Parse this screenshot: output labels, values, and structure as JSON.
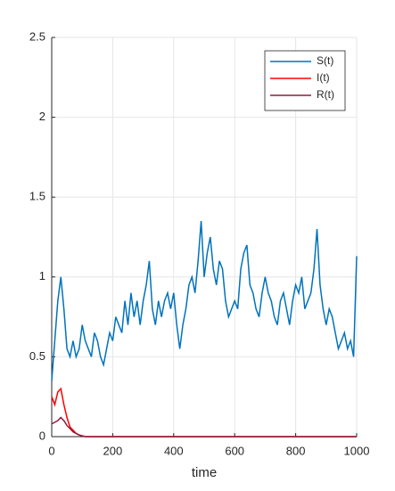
{
  "chart_data": {
    "type": "line",
    "xlabel": "time",
    "x": [
      0,
      10,
      20,
      30,
      40,
      50,
      60,
      70,
      80,
      90,
      100,
      110,
      120,
      130,
      140,
      150,
      160,
      170,
      180,
      190,
      200,
      210,
      220,
      230,
      240,
      250,
      260,
      270,
      280,
      290,
      300,
      310,
      320,
      330,
      340,
      350,
      360,
      370,
      380,
      390,
      400,
      410,
      420,
      430,
      440,
      450,
      460,
      470,
      480,
      490,
      500,
      510,
      520,
      530,
      540,
      550,
      560,
      570,
      580,
      590,
      600,
      610,
      620,
      630,
      640,
      650,
      660,
      670,
      680,
      690,
      700,
      710,
      720,
      730,
      740,
      750,
      760,
      770,
      780,
      790,
      800,
      810,
      820,
      830,
      840,
      850,
      860,
      870,
      880,
      890,
      900,
      910,
      920,
      930,
      940,
      950,
      960,
      970,
      980,
      990,
      1000
    ],
    "series": [
      {
        "name": "S(t)",
        "color": "#0072bd",
        "values": [
          0.35,
          0.6,
          0.85,
          1.0,
          0.8,
          0.55,
          0.5,
          0.6,
          0.5,
          0.55,
          0.7,
          0.6,
          0.55,
          0.5,
          0.65,
          0.6,
          0.5,
          0.45,
          0.55,
          0.65,
          0.6,
          0.75,
          0.7,
          0.65,
          0.85,
          0.7,
          0.9,
          0.75,
          0.85,
          0.7,
          0.85,
          0.95,
          1.1,
          0.8,
          0.7,
          0.85,
          0.75,
          0.85,
          0.9,
          0.8,
          0.9,
          0.7,
          0.55,
          0.7,
          0.8,
          0.95,
          1.0,
          0.9,
          1.1,
          1.35,
          1.0,
          1.15,
          1.25,
          1.05,
          0.95,
          1.1,
          1.05,
          0.85,
          0.75,
          0.8,
          0.85,
          0.8,
          1.05,
          1.15,
          1.2,
          0.95,
          0.9,
          0.8,
          0.75,
          0.9,
          1.0,
          0.9,
          0.85,
          0.75,
          0.7,
          0.85,
          0.9,
          0.8,
          0.7,
          0.85,
          0.95,
          0.9,
          1.0,
          0.8,
          0.85,
          0.9,
          1.05,
          1.3,
          0.95,
          0.8,
          0.7,
          0.8,
          0.75,
          0.65,
          0.55,
          0.6,
          0.65,
          0.55,
          0.6,
          0.5,
          1.13
        ]
      },
      {
        "name": "I(t)",
        "color": "#ff0000",
        "values": [
          0.25,
          0.2,
          0.28,
          0.3,
          0.2,
          0.12,
          0.06,
          0.04,
          0.02,
          0.01,
          0.005,
          0,
          0,
          0,
          0,
          0,
          0,
          0,
          0,
          0,
          0,
          0,
          0,
          0,
          0,
          0,
          0,
          0,
          0,
          0,
          0,
          0,
          0,
          0,
          0,
          0,
          0,
          0,
          0,
          0,
          0,
          0,
          0,
          0,
          0,
          0,
          0,
          0,
          0,
          0,
          0,
          0,
          0,
          0,
          0,
          0,
          0,
          0,
          0,
          0,
          0,
          0,
          0,
          0,
          0,
          0,
          0,
          0,
          0,
          0,
          0,
          0,
          0,
          0,
          0,
          0,
          0,
          0,
          0,
          0,
          0,
          0,
          0,
          0,
          0,
          0,
          0,
          0,
          0,
          0,
          0,
          0,
          0,
          0,
          0,
          0,
          0,
          0,
          0,
          0,
          0
        ]
      },
      {
        "name": "R(t)",
        "color": "#8b1e3f",
        "values": [
          0.08,
          0.09,
          0.1,
          0.12,
          0.1,
          0.07,
          0.05,
          0.03,
          0.02,
          0.01,
          0.005,
          0,
          0,
          0,
          0,
          0,
          0,
          0,
          0,
          0,
          0,
          0,
          0,
          0,
          0,
          0,
          0,
          0,
          0,
          0,
          0,
          0,
          0,
          0,
          0,
          0,
          0,
          0,
          0,
          0,
          0,
          0,
          0,
          0,
          0,
          0,
          0,
          0,
          0,
          0,
          0,
          0,
          0,
          0,
          0,
          0,
          0,
          0,
          0,
          0,
          0,
          0,
          0,
          0,
          0,
          0,
          0,
          0,
          0,
          0,
          0,
          0,
          0,
          0,
          0,
          0,
          0,
          0,
          0,
          0,
          0,
          0,
          0,
          0,
          0,
          0,
          0,
          0,
          0,
          0,
          0,
          0,
          0,
          0,
          0,
          0,
          0,
          0,
          0,
          0,
          0
        ]
      }
    ],
    "xlim": [
      0,
      1000
    ],
    "xticks": [
      0,
      200,
      400,
      600,
      800,
      1000
    ],
    "ylim": [
      0,
      2.5
    ],
    "yticks": [
      0,
      0.5,
      1,
      1.5,
      2,
      2.5
    ],
    "grid": true,
    "legend": "northeast"
  }
}
